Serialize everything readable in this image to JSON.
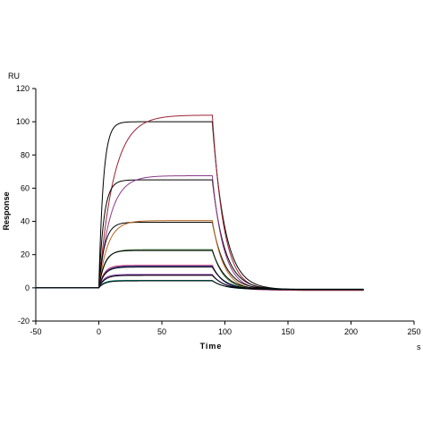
{
  "chart_data": {
    "type": "line",
    "title": "",
    "xlabel": "Time",
    "ylabel": "Response",
    "x_unit": "s",
    "y_unit": "RU",
    "xlim": [
      -50,
      250
    ],
    "ylim": [
      -20,
      120
    ],
    "x_ticks": [
      -50,
      0,
      50,
      100,
      150,
      200,
      250
    ],
    "y_ticks": [
      -20,
      0,
      20,
      40,
      60,
      80,
      100,
      120
    ],
    "x_tick_labels": [
      "-50",
      "0",
      "50",
      "100",
      "150",
      "200",
      "250"
    ],
    "y_tick_labels": [
      "-20",
      "0",
      "20",
      "40",
      "60",
      "80",
      "100",
      "120"
    ],
    "grid": false,
    "legend": "none",
    "association_start": 0,
    "dissociation_start": 90,
    "x_end": 210,
    "series": [
      {
        "type": "fit",
        "color": "#000000",
        "plateau": 100,
        "kon": 0.28,
        "koff": 0.1,
        "baseline": -1
      },
      {
        "type": "data",
        "color": "#9b2335",
        "plateau": 104,
        "kon": 0.085,
        "koff": 0.11,
        "baseline": -1.5
      },
      {
        "type": "fit",
        "color": "#000000",
        "plateau": 65,
        "kon": 0.25,
        "koff": 0.1,
        "baseline": -1
      },
      {
        "type": "data",
        "color": "#8b3a8b",
        "plateau": 67.5,
        "kon": 0.11,
        "koff": 0.11,
        "baseline": -1.5
      },
      {
        "type": "fit",
        "color": "#000000",
        "plateau": 39.5,
        "kon": 0.22,
        "koff": 0.1,
        "baseline": -1
      },
      {
        "type": "data",
        "color": "#b5651d",
        "plateau": 40.5,
        "kon": 0.14,
        "koff": 0.11,
        "baseline": -1.5
      },
      {
        "type": "data",
        "color": "#3a7d3a",
        "plateau": 23,
        "kon": 0.2,
        "koff": 0.11,
        "baseline": -1.2
      },
      {
        "type": "fit",
        "color": "#000000",
        "plateau": 22.5,
        "kon": 0.22,
        "koff": 0.1,
        "baseline": -1
      },
      {
        "type": "data",
        "color": "#c2185b",
        "plateau": 13.5,
        "kon": 0.24,
        "koff": 0.11,
        "baseline": -1.3
      },
      {
        "type": "data",
        "color": "#1f3fae",
        "plateau": 13,
        "kon": 0.22,
        "koff": 0.11,
        "baseline": -1.1
      },
      {
        "type": "fit",
        "color": "#000000",
        "plateau": 12.5,
        "kon": 0.22,
        "koff": 0.1,
        "baseline": -1
      },
      {
        "type": "data",
        "color": "#6a1b9a",
        "plateau": 8,
        "kon": 0.25,
        "koff": 0.11,
        "baseline": -1
      },
      {
        "type": "fit",
        "color": "#000000",
        "plateau": 7.5,
        "kon": 0.22,
        "koff": 0.1,
        "baseline": -1
      },
      {
        "type": "data",
        "color": "#00897b",
        "plateau": 4.5,
        "kon": 0.25,
        "koff": 0.11,
        "baseline": -0.8
      },
      {
        "type": "fit",
        "color": "#000000",
        "plateau": 4.2,
        "kon": 0.22,
        "koff": 0.1,
        "baseline": -0.8
      }
    ]
  }
}
